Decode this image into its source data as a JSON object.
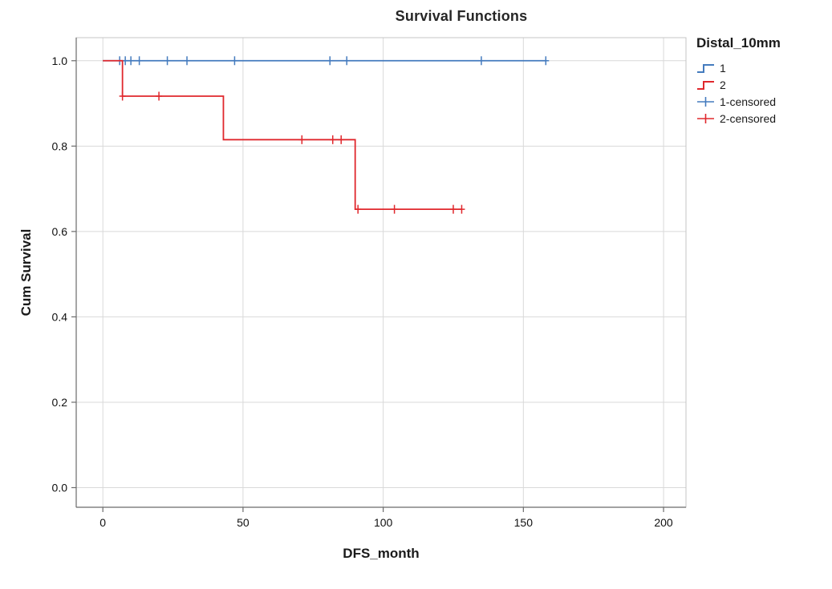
{
  "title": "Survival Functions",
  "legend": {
    "title": "Distal_10mm",
    "entries": [
      {
        "label": "1",
        "type": "step",
        "color": "#447bbe"
      },
      {
        "label": "2",
        "type": "step",
        "color": "#e0282d"
      },
      {
        "label": "1-censored",
        "type": "censored",
        "color": "#447bbe"
      },
      {
        "label": "2-censored",
        "type": "censored",
        "color": "#e0282d"
      }
    ]
  },
  "chart_data": {
    "type": "line",
    "subtype": "kaplan-meier-step",
    "title": "Survival Functions",
    "xlabel": "DFS_month",
    "ylabel": "Cum Survival",
    "xlim": [
      -9.5,
      208
    ],
    "ylim": [
      -0.046,
      1.054
    ],
    "xticks": [
      0,
      50,
      100,
      150,
      200
    ],
    "xtick_labels": [
      "0",
      "50",
      "100",
      "150",
      "200"
    ],
    "yticks": [
      0.0,
      0.2,
      0.4,
      0.6,
      0.8,
      1.0
    ],
    "ytick_labels": [
      "0.0",
      "0.2",
      "0.4",
      "0.6",
      "0.8",
      "1.0"
    ],
    "grid": true,
    "legend_title": "Distal_10mm",
    "legend_position": "right",
    "colors": {
      "series1": "#447bbe",
      "series2": "#e0282d",
      "grid": "#d9d9d9",
      "frame": "#c4c4c4",
      "axis": "#6b6b6b",
      "tick_label": "#111111"
    },
    "series": [
      {
        "name": "1",
        "color": "#447bbe",
        "steps": [
          [
            0,
            1.0
          ],
          [
            158,
            1.0
          ]
        ],
        "censored": [
          [
            6,
            1.0
          ],
          [
            8,
            1.0
          ],
          [
            10,
            1.0
          ],
          [
            13,
            1.0
          ],
          [
            23,
            1.0
          ],
          [
            30,
            1.0
          ],
          [
            47,
            1.0
          ],
          [
            81,
            1.0
          ],
          [
            87,
            1.0
          ],
          [
            135,
            1.0
          ],
          [
            158,
            1.0
          ]
        ]
      },
      {
        "name": "2",
        "color": "#e0282d",
        "steps": [
          [
            0,
            1.0
          ],
          [
            7,
            1.0
          ],
          [
            7,
            0.917
          ],
          [
            43,
            0.917
          ],
          [
            43,
            0.815
          ],
          [
            90,
            0.815
          ],
          [
            90,
            0.652
          ],
          [
            128,
            0.652
          ]
        ],
        "censored": [
          [
            7,
            0.917
          ],
          [
            20,
            0.917
          ],
          [
            71,
            0.815
          ],
          [
            82,
            0.815
          ],
          [
            85,
            0.815
          ],
          [
            91,
            0.652
          ],
          [
            104,
            0.652
          ],
          [
            125,
            0.652
          ],
          [
            128,
            0.652
          ]
        ]
      }
    ]
  }
}
